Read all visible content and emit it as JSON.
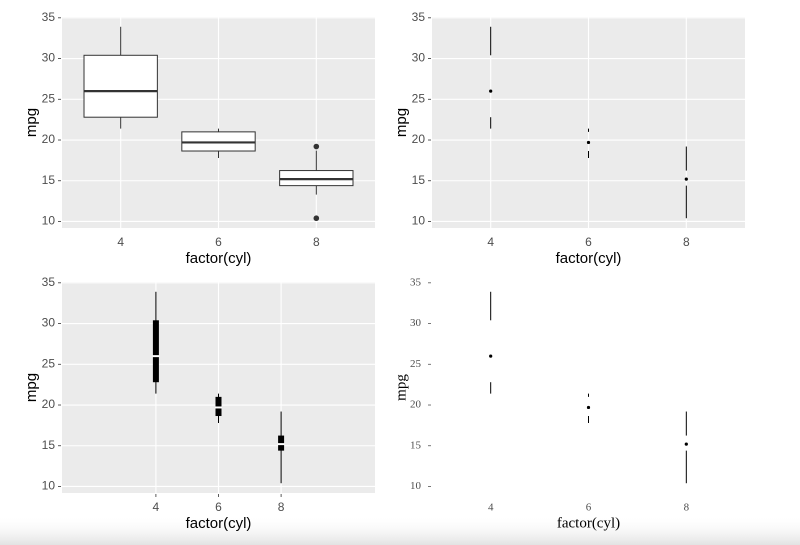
{
  "chart_data": [
    {
      "type": "box",
      "theme": "gray",
      "grid": true,
      "x_label": "factor(cyl)",
      "y_label": "mpg",
      "categories": [
        "4",
        "6",
        "8"
      ],
      "min": [
        21.4,
        17.8,
        13.3
      ],
      "q1": [
        22.8,
        18.65,
        14.4
      ],
      "median": [
        26,
        19.7,
        15.2
      ],
      "q3": [
        30.4,
        21,
        16.25
      ],
      "max": [
        33.9,
        21.4,
        18.7
      ],
      "outliers": [
        [],
        [],
        [
          10.4,
          19.2
        ]
      ],
      "ylim": [
        9.2,
        35.1
      ],
      "yticks": [
        10,
        15,
        20,
        25,
        30,
        35
      ]
    },
    {
      "type": "tufte",
      "theme": "gray",
      "grid": true,
      "x_label": "factor(cyl)",
      "y_label": "mpg",
      "categories": [
        "4",
        "6",
        "8"
      ],
      "min": [
        21.4,
        17.8,
        10.4
      ],
      "q1": [
        22.8,
        18.65,
        14.4
      ],
      "median": [
        26,
        19.7,
        15.2
      ],
      "q3": [
        30.4,
        21,
        16.25
      ],
      "max": [
        33.9,
        21.4,
        19.2
      ],
      "ylim": [
        9.2,
        35.1
      ],
      "yticks": [
        10,
        15,
        20,
        25,
        30,
        35
      ]
    },
    {
      "type": "tuftebar",
      "theme": "gray",
      "grid": true,
      "x_label": "factor(cyl)",
      "y_label": "mpg",
      "x": [
        4,
        6,
        8
      ],
      "min": [
        21.4,
        17.8,
        10.4
      ],
      "q1": [
        22.8,
        18.65,
        14.4
      ],
      "median": [
        26,
        19.7,
        15.2
      ],
      "q3": [
        30.4,
        21,
        16.25
      ],
      "max": [
        33.9,
        21.4,
        19.2
      ],
      "xlim": [
        1,
        11
      ],
      "xticks": [
        4,
        6,
        8
      ],
      "ylim": [
        9.2,
        35.1
      ],
      "yticks": [
        10,
        15,
        20,
        25,
        30,
        35
      ]
    },
    {
      "type": "tufte",
      "theme": "tufte",
      "grid": false,
      "x_label": "factor(cyl)",
      "y_label": "mpg",
      "categories": [
        "4",
        "6",
        "8"
      ],
      "min": [
        21.4,
        17.8,
        10.4
      ],
      "q1": [
        22.8,
        18.65,
        14.4
      ],
      "median": [
        26,
        19.7,
        15.2
      ],
      "q3": [
        30.4,
        21,
        16.25
      ],
      "max": [
        33.9,
        21.4,
        19.2
      ],
      "ylim": [
        9.2,
        35.1
      ],
      "yticks": [
        10,
        15,
        20,
        25,
        30,
        35
      ]
    }
  ]
}
